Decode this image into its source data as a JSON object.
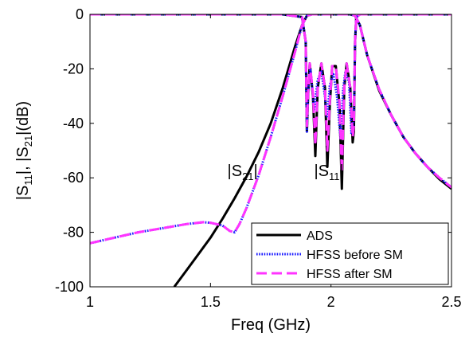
{
  "chart_data": {
    "type": "line",
    "xlabel": "Freq (GHz)",
    "ylabel": {
      "p1": "|S",
      "s1": "11",
      "p2": "|, |S",
      "s2": "21",
      "p3": "|(dB)"
    },
    "xlim": [
      1,
      2.5
    ],
    "ylim": [
      -100,
      0
    ],
    "xticks": [
      1,
      1.5,
      2,
      2.5
    ],
    "xtick_labels": [
      "1",
      "1.5",
      "2",
      "2.5"
    ],
    "yticks": [
      0,
      -20,
      -40,
      -60,
      -80,
      -100
    ],
    "ytick_labels": [
      "0",
      "-20",
      "-40",
      "-60",
      "-80",
      "-100"
    ],
    "grid": false,
    "legend_position": "bottom-right",
    "annotations": [
      {
        "prefix": "|S",
        "sub": "21",
        "suffix": "|",
        "x": 1.57,
        "y": -60
      },
      {
        "prefix": "|S",
        "sub": "11",
        "suffix": "|",
        "x": 1.93,
        "y": -60
      }
    ],
    "series": [
      {
        "name": "ADS",
        "color": "#000000",
        "style": "solid",
        "s21": {
          "x": [
            1.35,
            1.4,
            1.45,
            1.5,
            1.55,
            1.6,
            1.65,
            1.7,
            1.75,
            1.8,
            1.85,
            1.88,
            1.9,
            1.92,
            2.08,
            2.1,
            2.12,
            2.15,
            2.2,
            2.25,
            2.3,
            2.35,
            2.4,
            2.45,
            2.5
          ],
          "y": [
            -100,
            -94,
            -88,
            -82,
            -75,
            -67.5,
            -59.5,
            -50.5,
            -40,
            -27,
            -12,
            -4,
            -0.5,
            0,
            0,
            -0.5,
            -4,
            -15,
            -28,
            -37,
            -45,
            -51,
            -56,
            -60.5,
            -64
          ]
        },
        "s11": {
          "x": [
            1,
            1.8,
            1.88,
            1.895,
            1.9,
            1.905,
            1.912,
            1.925,
            1.935,
            1.945,
            1.96,
            1.975,
            1.985,
            1.995,
            2.005,
            2.02,
            2.035,
            2.045,
            2.055,
            2.065,
            2.08,
            2.09,
            2.095,
            2.1,
            2.105,
            2.12,
            2.2,
            2.5
          ],
          "y": [
            0,
            0,
            -1,
            -10,
            -43,
            -30,
            -18,
            -30,
            -52,
            -27,
            -18,
            -27,
            -56,
            -33,
            -19,
            -19,
            -33,
            -64,
            -27,
            -18,
            -27,
            -47,
            -43,
            -10,
            -1,
            0,
            0,
            0
          ]
        }
      },
      {
        "name": "HFSS before SM",
        "color": "#1a1aff",
        "style": "dotted",
        "s21": {
          "x": [
            1,
            1.1,
            1.2,
            1.3,
            1.4,
            1.47,
            1.5,
            1.55,
            1.58,
            1.6,
            1.62,
            1.65,
            1.7,
            1.75,
            1.8,
            1.85,
            1.88,
            1.9,
            1.92,
            2.08,
            2.1,
            2.12,
            2.15,
            2.2,
            2.25,
            2.3,
            2.35,
            2.4,
            2.45,
            2.5
          ],
          "y": [
            -84,
            -82,
            -80,
            -78.5,
            -77,
            -76.3,
            -76.5,
            -77.5,
            -79.5,
            -80,
            -77,
            -71,
            -59,
            -45,
            -30,
            -14,
            -4,
            -0.5,
            0,
            0,
            -0.5,
            -4,
            -15,
            -27.5,
            -37,
            -45,
            -51,
            -56,
            -60,
            -63.5
          ]
        },
        "s11": {
          "x": [
            1,
            1.8,
            1.88,
            1.895,
            1.9,
            1.905,
            1.915,
            1.93,
            1.945,
            1.96,
            1.975,
            1.985,
            1.995,
            2.01,
            2.025,
            2.04,
            2.05,
            2.06,
            2.075,
            2.085,
            2.095,
            2.1,
            2.105,
            2.12,
            2.2,
            2.5
          ],
          "y": [
            0,
            0,
            -1,
            -10,
            -43,
            -28,
            -20,
            -35,
            -24,
            -21,
            -30,
            -38,
            -26,
            -22,
            -30,
            -46,
            -28,
            -21,
            -25,
            -44,
            -38,
            -10,
            -1,
            0,
            0,
            0
          ]
        }
      },
      {
        "name": "HFSS after SM",
        "color": "#ff33ff",
        "style": "dashed",
        "s21": {
          "x": [
            1,
            1.1,
            1.2,
            1.3,
            1.4,
            1.47,
            1.5,
            1.55,
            1.58,
            1.6,
            1.62,
            1.65,
            1.7,
            1.75,
            1.8,
            1.85,
            1.88,
            1.9,
            1.92,
            2.08,
            2.1,
            2.12,
            2.15,
            2.2,
            2.25,
            2.3,
            2.35,
            2.4,
            2.45,
            2.5
          ],
          "y": [
            -84,
            -82,
            -80,
            -78.5,
            -77,
            -76.3,
            -76.5,
            -77.5,
            -79.5,
            -80,
            -77,
            -71,
            -59,
            -45,
            -30,
            -14,
            -4,
            -0.5,
            0,
            0,
            -0.5,
            -4,
            -15,
            -27.5,
            -37,
            -45,
            -51,
            -56,
            -60,
            -63.5
          ]
        },
        "s11": {
          "x": [
            1,
            1.8,
            1.88,
            1.895,
            1.9,
            1.905,
            1.912,
            1.925,
            1.935,
            1.945,
            1.96,
            1.975,
            1.985,
            1.995,
            2.005,
            2.02,
            2.035,
            2.045,
            2.055,
            2.065,
            2.08,
            2.09,
            2.095,
            2.1,
            2.105,
            2.12,
            2.2,
            2.5
          ],
          "y": [
            0,
            0,
            -1,
            -10,
            -41,
            -29,
            -18,
            -29,
            -48,
            -27,
            -18,
            -27,
            -50,
            -32,
            -19,
            -19,
            -32,
            -58,
            -27,
            -18,
            -27,
            -45,
            -41,
            -10,
            -1,
            0,
            0,
            0
          ]
        }
      }
    ]
  }
}
